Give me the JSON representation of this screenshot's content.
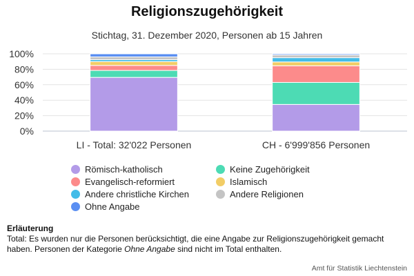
{
  "header": {
    "title": "Religionszugehörigkeit",
    "subtitle": "Stichtag, 31. Dezember 2020, Personen ab 15 Jahren"
  },
  "chart_data": {
    "type": "bar",
    "stacked": true,
    "categories": [
      "LI - Total: 32'022 Personen",
      "CH - 6'999'856 Personen"
    ],
    "y_ticks": [
      "0%",
      "20%",
      "40%",
      "60%",
      "80%",
      "100%"
    ],
    "ylim": [
      0,
      100
    ],
    "grid": true,
    "legend_position": "bottom",
    "series": [
      {
        "name": "Römisch-katholisch",
        "color": "#b39be8",
        "values": [
          69.5,
          34.5
        ]
      },
      {
        "name": "Keine Zugehörigkeit",
        "color": "#4ddbb4",
        "values": [
          9.0,
          28.5
        ]
      },
      {
        "name": "Evangelisch-reformiert",
        "color": "#fc8b8b",
        "values": [
          6.5,
          21.5
        ]
      },
      {
        "name": "Islamisch",
        "color": "#f2cd66",
        "values": [
          5.0,
          5.0
        ]
      },
      {
        "name": "Andere christliche Kirchen",
        "color": "#43bce8",
        "values": [
          2.5,
          5.5
        ]
      },
      {
        "name": "Andere Religionen",
        "color": "#c4c4c4",
        "values": [
          3.5,
          3.5
        ]
      },
      {
        "name": "Ohne Angabe",
        "color": "#5b8ff2",
        "values": [
          4.0,
          1.5
        ]
      }
    ]
  },
  "note": {
    "title": "Erläuterung",
    "prefix": "Total: Es wurden nur die Personen berücksichtigt, die eine Angabe zur Religionszugehörigkeit gemacht haben. Personen der Kategorie ",
    "emphasis": "Ohne Angabe",
    "suffix": " sind nicht im Total enthalten."
  },
  "source": "Amt für Statistik Liechtenstein"
}
